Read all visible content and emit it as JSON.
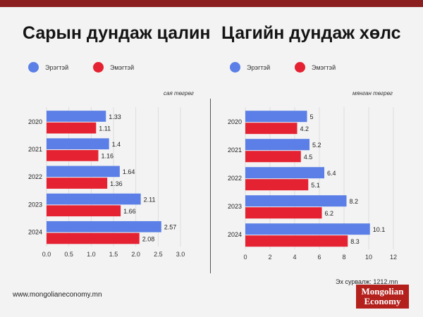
{
  "colors": {
    "male": "#5b7fe6",
    "female": "#e52231",
    "accent": "#8b1e1e"
  },
  "left_panel": {
    "title": "Сарын дундаж цалин",
    "legend": {
      "male": "Эрэгтэй",
      "female": "Эмэгтэй"
    },
    "unit": "сая төгрөг"
  },
  "right_panel": {
    "title": "Цагийн дундаж хөлс",
    "legend": {
      "male": "Эрэгтэй",
      "female": "Эмэгтэй"
    },
    "unit": "мянган төгрөг"
  },
  "footer": {
    "source": "Эх сурвалж: 1212.mn",
    "website": "www.mongolianeconomy.mn",
    "logo_line1": "Mongolian",
    "logo_line2": "Economy"
  },
  "chart_data": [
    {
      "type": "bar",
      "orientation": "horizontal",
      "title": "Сарын дундаж цалин",
      "unit": "сая төгрөг",
      "categories": [
        "2020",
        "2021",
        "2022",
        "2023",
        "2024"
      ],
      "series": [
        {
          "name": "Эрэгтэй",
          "values": [
            1.33,
            1.4,
            1.64,
            2.11,
            2.57
          ]
        },
        {
          "name": "Эмэгтэй",
          "values": [
            1.11,
            1.16,
            1.36,
            1.66,
            2.08
          ]
        }
      ],
      "xlim": [
        0,
        3.0
      ],
      "xticks": [
        "0.0",
        "0.5",
        "1.0",
        "1.5",
        "2.0",
        "2.5",
        "3.0"
      ]
    },
    {
      "type": "bar",
      "orientation": "horizontal",
      "title": "Цагийн дундаж хөлс",
      "unit": "мянган төгрөг",
      "categories": [
        "2020",
        "2021",
        "2022",
        "2023",
        "2024"
      ],
      "series": [
        {
          "name": "Эрэгтэй",
          "values": [
            5,
            5.2,
            6.4,
            8.2,
            10.1
          ]
        },
        {
          "name": "Эмэгтэй",
          "values": [
            4.2,
            4.5,
            5.1,
            6.2,
            8.3
          ]
        }
      ],
      "xlim": [
        0,
        12
      ],
      "xticks": [
        "0",
        "2",
        "4",
        "6",
        "8",
        "10",
        "12"
      ]
    }
  ]
}
